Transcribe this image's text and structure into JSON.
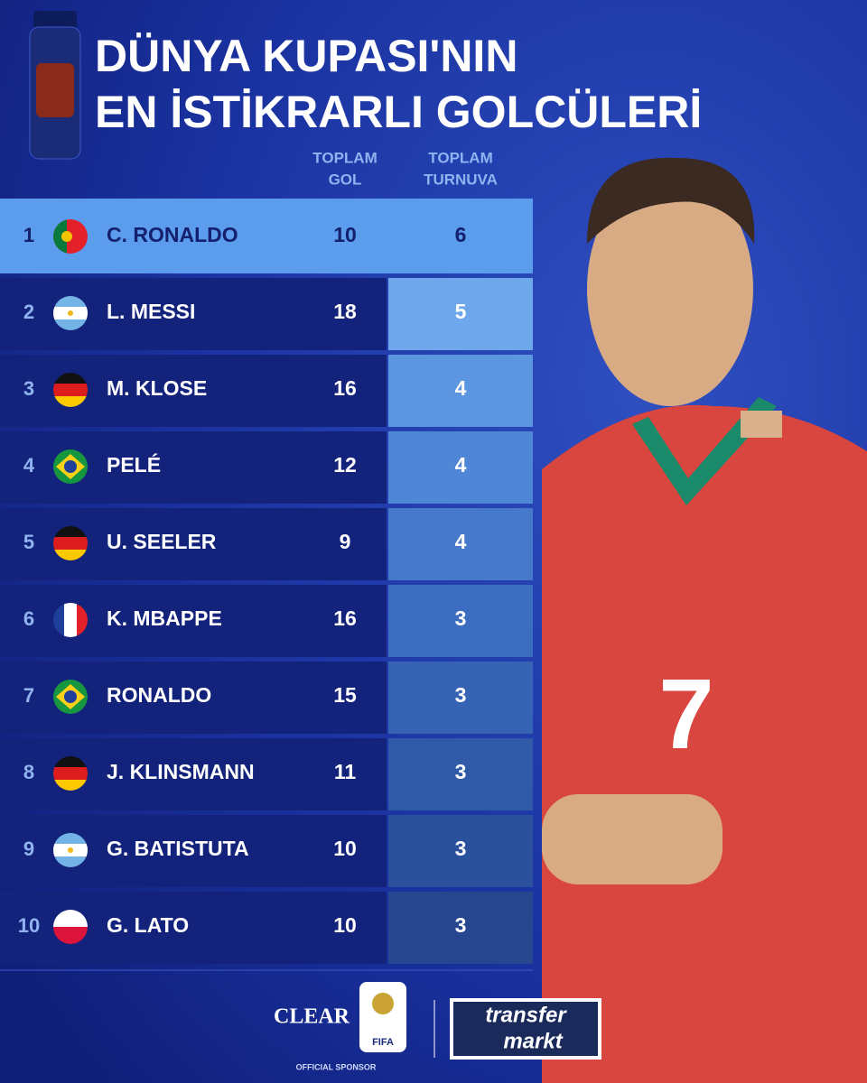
{
  "header": {
    "title_lines": [
      "DÜNYA KUPASI'NIN",
      "EN İSTİKRARLI GOLCÜLERİ"
    ]
  },
  "table": {
    "columns": [
      {
        "lines": [
          "TOPLAM",
          "GOL"
        ]
      },
      {
        "lines": [
          "TOPLAM",
          "TURNUVA"
        ]
      }
    ],
    "rows": [
      [
        1,
        "C. RONALDO",
        10,
        6
      ],
      [
        2,
        "L. MESSI",
        18,
        5
      ],
      [
        3,
        "M. KLOSE",
        16,
        4
      ],
      [
        4,
        "PELÉ",
        12,
        4
      ],
      [
        5,
        "U. SEELER",
        9,
        4
      ],
      [
        6,
        "K. MBAPPE",
        16,
        3
      ],
      [
        7,
        "RONALDO",
        15,
        3
      ],
      [
        8,
        "J. KLINSMANN",
        11,
        3
      ],
      [
        9,
        "G. BATISTUTA",
        10,
        3
      ],
      [
        10,
        "G. LATO",
        10,
        3
      ]
    ]
  },
  "footer": {
    "sponsor": "CLEAR",
    "sponsor_note": "OFFICIAL SPONSOR",
    "fifa": "FIFA",
    "partner_lines": [
      "transfer",
      "markt"
    ]
  }
}
